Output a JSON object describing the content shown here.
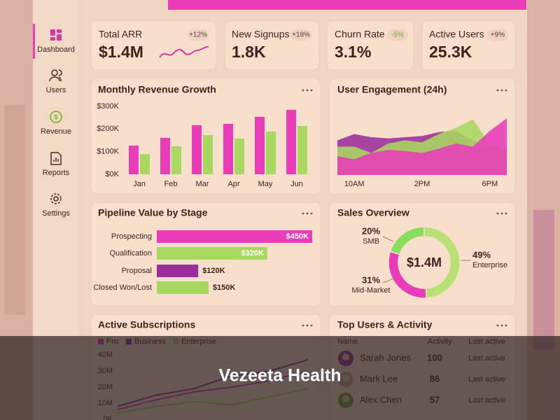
{
  "sidebar": {
    "items": [
      "Dashboard",
      "Users",
      "Revenue",
      "Reports",
      "Settings"
    ]
  },
  "kpis": [
    {
      "label": "Total ARR",
      "value": "$1.4M",
      "change": "+12%"
    },
    {
      "label": "New Signups",
      "value": "1.8K",
      "change": "+18%"
    },
    {
      "label": "Churn Rate",
      "value": "3.1%",
      "change": "-5%"
    },
    {
      "label": "Active Users",
      "value": "25.3K",
      "change": "+9%"
    }
  ],
  "chart_data": [
    {
      "type": "bar",
      "title": "Monthly Revenue Growth",
      "categories": [
        "Jan",
        "Feb",
        "Mar",
        "Apr",
        "May",
        "Jun"
      ],
      "series": [
        {
          "color": "#e83cb8",
          "values": [
            127000,
            161000,
            217000,
            223000,
            254000,
            285000
          ]
        },
        {
          "color": "#a8d860",
          "values": [
            90000,
            124000,
            173000,
            158000,
            189000,
            214000
          ]
        }
      ],
      "ylim": [
        0,
        300000
      ],
      "yticks": [
        {
          "value": 0,
          "label": "$0K"
        },
        {
          "value": 100000,
          "label": "$100K"
        },
        {
          "value": 200000,
          "label": "$200K"
        },
        {
          "value": 300000,
          "label": "$300K"
        }
      ]
    },
    {
      "type": "area",
      "title": "User Engagement (24h)",
      "categories": [
        null,
        "10AM",
        null,
        null,
        null,
        "2PM",
        null,
        null,
        null,
        "6PM",
        null
      ],
      "series": [
        {
          "color": "#9c2e9c",
          "values": [
            55,
            65,
            60,
            58,
            60,
            62,
            68,
            70,
            55,
            45,
            40
          ]
        },
        {
          "color": "#a8d860",
          "values": [
            45,
            45,
            35,
            50,
            55,
            52,
            65,
            75,
            88,
            50,
            40
          ]
        },
        {
          "color": "#e83cb8",
          "values": [
            30,
            25,
            35,
            40,
            38,
            35,
            42,
            50,
            45,
            70,
            90
          ]
        }
      ],
      "ylim": [
        0,
        100
      ]
    },
    {
      "type": "hbar",
      "title": "Pipeline Value by Stage",
      "categories": [
        "Prospecting",
        "Qualification",
        "Proposal",
        "Closed Won/Lost"
      ],
      "values": [
        450000,
        320000,
        120000,
        150000
      ],
      "value_labels": [
        "$450K",
        "$320K",
        "$120K",
        "$150K"
      ],
      "colors": [
        "#e83cb8",
        "#a8d860",
        "#9c2e9c",
        "#a8d860"
      ],
      "xlim": [
        0,
        450000
      ]
    },
    {
      "type": "donut",
      "title": "Sales Overview",
      "center_label": "$1.4M",
      "categories": [
        "SMB",
        "Enterprise",
        "Mid-Market"
      ],
      "values": [
        20,
        49,
        31
      ],
      "value_labels": [
        "20%",
        "49%",
        "31%"
      ],
      "colors": [
        "#86de5c",
        "#b9e074",
        "#e83cb8"
      ]
    },
    {
      "type": "line",
      "title": "Active Subscriptions",
      "categories": [
        null,
        null,
        null,
        null,
        null,
        null
      ],
      "series": [
        {
          "name": "Pro",
          "color": "#e83cb8",
          "values": [
            6000000,
            12000000,
            17000000,
            20000000,
            24000000,
            30000000
          ]
        },
        {
          "name": "Business",
          "color": "#9c2e9c",
          "values": [
            8000000,
            15000000,
            19000000,
            27000000,
            30000000,
            37000000
          ]
        },
        {
          "name": "Enterprise",
          "color": "#a8d860",
          "values": [
            4000000,
            8000000,
            11000000,
            9000000,
            14000000,
            19000000
          ]
        }
      ],
      "ylim": [
        0,
        40000000
      ],
      "yticks": [
        {
          "value": 0,
          "label": "0K"
        },
        {
          "value": 10000000,
          "label": "10M"
        },
        {
          "value": 20000000,
          "label": "20M"
        },
        {
          "value": 30000000,
          "label": "30M"
        },
        {
          "value": 40000000,
          "label": "40M"
        }
      ]
    }
  ],
  "top_users": {
    "title": "Top Users & Activity",
    "columns": [
      "Name",
      "Activity",
      "Last active"
    ],
    "rows": [
      [
        "Sarah Jones",
        100,
        "Last active"
      ],
      [
        "Mark Lee",
        86,
        "Last active"
      ],
      [
        "Alex Chen",
        57,
        "Last active"
      ]
    ]
  },
  "footer_caption": "Vezeeta Health"
}
